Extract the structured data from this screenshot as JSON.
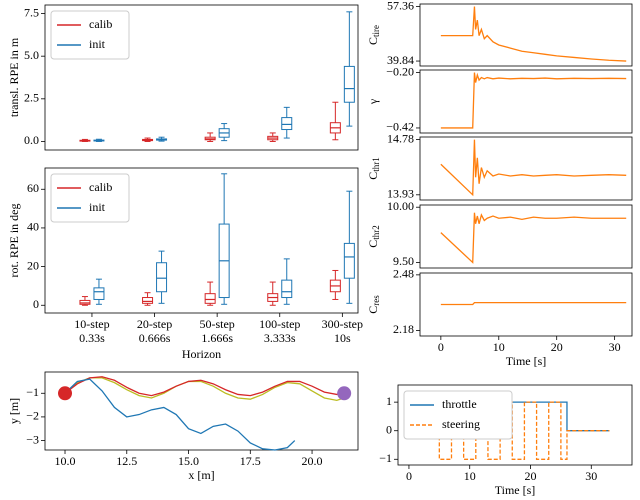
{
  "chart_data": [
    {
      "type": "box",
      "ylabel": "transl. RPE in m",
      "ylim": [
        -0.5,
        8.0
      ],
      "yticks": [
        {
          "value": 0,
          "label": "0.0"
        },
        {
          "value": 2.5,
          "label": "2.5"
        },
        {
          "value": 5,
          "label": "5.0"
        },
        {
          "value": 7.5,
          "label": "7.5"
        }
      ],
      "legend": "upper left",
      "series": [
        {
          "name": "calib",
          "color": "#d62728",
          "min": [
            0.0,
            0.0,
            0.0,
            0.0,
            0.1
          ],
          "q1": [
            0.02,
            0.05,
            0.1,
            0.1,
            0.5
          ],
          "median": [
            0.04,
            0.08,
            0.15,
            0.2,
            0.8
          ],
          "q3": [
            0.07,
            0.12,
            0.25,
            0.3,
            1.1
          ],
          "max": [
            0.12,
            0.2,
            0.5,
            0.5,
            2.3
          ]
        },
        {
          "name": "init",
          "color": "#1f77b4",
          "min": [
            0.0,
            0.02,
            0.05,
            0.2,
            0.9
          ],
          "q1": [
            0.03,
            0.08,
            0.25,
            0.7,
            2.3
          ],
          "median": [
            0.05,
            0.11,
            0.5,
            1.0,
            3.1
          ],
          "q3": [
            0.08,
            0.15,
            0.75,
            1.4,
            4.4
          ],
          "max": [
            0.13,
            0.25,
            1.05,
            2.0,
            7.6
          ]
        }
      ]
    },
    {
      "type": "box",
      "ylabel": "rot. RPE in deg",
      "xlabel": "Horizon",
      "ylim": [
        -4,
        71
      ],
      "yticks": [
        0,
        20,
        40,
        60
      ],
      "legend": "upper left",
      "categories": [
        "10-step",
        "20-step",
        "50-step",
        "100-step",
        "300-step"
      ],
      "category_sublabels": [
        "0.33s",
        "0.666s",
        "1.666s",
        "3.333s",
        "10s"
      ],
      "series": [
        {
          "name": "calib",
          "color": "#d62728",
          "min": [
            0,
            0,
            0,
            0,
            3
          ],
          "q1": [
            0.5,
            1,
            1,
            2,
            7
          ],
          "median": [
            1.2,
            2,
            3,
            4,
            10
          ],
          "q3": [
            2.5,
            4,
            6,
            6,
            13
          ],
          "max": [
            4.5,
            6.5,
            12,
            12,
            18
          ]
        },
        {
          "name": "init",
          "color": "#1f77b4",
          "min": [
            0.5,
            1,
            0.5,
            0.5,
            1
          ],
          "q1": [
            3,
            7,
            4,
            4,
            14
          ],
          "median": [
            7,
            14,
            23,
            7,
            25
          ],
          "q3": [
            9,
            22,
            42,
            13,
            32
          ],
          "max": [
            13.5,
            28,
            68,
            24,
            59
          ]
        }
      ]
    },
    {
      "type": "line",
      "ylabel": "C",
      "ylabel_sub": "tire",
      "xlim": [
        -3.6,
        33
      ],
      "ylim": [
        38.25,
        58.16
      ],
      "yticks": [
        57.36,
        39.84
      ],
      "x": [
        0,
        5.5,
        5.8,
        6.0,
        6.3,
        6.6,
        7.0,
        7.5,
        8,
        9,
        10,
        12,
        14,
        16,
        18,
        20,
        23,
        26,
        29,
        32
      ],
      "series": [
        {
          "color": "#ff7f0e",
          "values": [
            48,
            48,
            57.36,
            50,
            53,
            48,
            50,
            47,
            48,
            46,
            45,
            44,
            43,
            42.5,
            42,
            41.5,
            41,
            40.5,
            40.1,
            39.84
          ]
        }
      ]
    },
    {
      "type": "line",
      "ylabel": "γ",
      "xlim": [
        -3.6,
        33
      ],
      "ylim": [
        -0.44,
        -0.19
      ],
      "yticks": [
        {
          "value": -0.2,
          "label": "−0.20"
        },
        {
          "value": -0.42,
          "label": "−0.42"
        }
      ],
      "x": [
        0,
        5.5,
        5.8,
        6.0,
        6.3,
        6.6,
        7.0,
        7.5,
        8,
        9,
        10,
        12,
        14,
        16,
        18,
        20,
        23,
        26,
        29,
        32
      ],
      "series": [
        {
          "color": "#ff7f0e",
          "values": [
            -0.42,
            -0.42,
            -0.2,
            -0.24,
            -0.21,
            -0.23,
            -0.22,
            -0.225,
            -0.22,
            -0.225,
            -0.222,
            -0.225,
            -0.223,
            -0.224,
            -0.222,
            -0.225,
            -0.223,
            -0.224,
            -0.223,
            -0.224
          ]
        }
      ]
    },
    {
      "type": "line",
      "ylabel": "C",
      "ylabel_sub": "thr1",
      "xlim": [
        -3.6,
        33
      ],
      "ylim": [
        13.85,
        14.82
      ],
      "yticks": [
        14.78,
        13.93
      ],
      "x": [
        0,
        5.5,
        5.8,
        6.0,
        6.3,
        6.6,
        7.0,
        7.5,
        8,
        9,
        10,
        12,
        14,
        16,
        18,
        20,
        23,
        26,
        29,
        32
      ],
      "series": [
        {
          "color": "#ff7f0e",
          "values": [
            14.4,
            13.93,
            14.78,
            14.2,
            14.5,
            14.1,
            14.35,
            14.2,
            14.3,
            14.22,
            14.25,
            14.22,
            14.24,
            14.22,
            14.23,
            14.24,
            14.22,
            14.23,
            14.24,
            14.23
          ]
        }
      ]
    },
    {
      "type": "line",
      "ylabel": "C",
      "ylabel_sub": "thr2",
      "xlim": [
        -3.6,
        33
      ],
      "ylim": [
        9.45,
        10.02
      ],
      "yticks": [
        {
          "value": 10,
          "label": "10.00"
        },
        {
          "value": 9.5,
          "label": "9.50"
        }
      ],
      "x": [
        0,
        5.5,
        5.8,
        6.0,
        6.3,
        6.6,
        7.0,
        7.5,
        8,
        9,
        10,
        12,
        14,
        16,
        18,
        20,
        23,
        26,
        29,
        32
      ],
      "series": [
        {
          "color": "#ff7f0e",
          "values": [
            9.77,
            9.5,
            9.95,
            9.85,
            9.92,
            9.85,
            9.93,
            9.88,
            9.9,
            9.92,
            9.9,
            9.91,
            9.89,
            9.91,
            9.9,
            9.9,
            9.91,
            9.9,
            9.9,
            9.9
          ]
        }
      ]
    },
    {
      "type": "line",
      "ylabel": "C",
      "ylabel_sub": "res",
      "xlabel": "Time [s]",
      "xlim": [
        -3.6,
        33
      ],
      "ylim": [
        2.15,
        2.49
      ],
      "yticks": [
        2.48,
        2.18
      ],
      "xticks": [
        0,
        10,
        20,
        30
      ],
      "x": [
        0,
        5.5,
        5.8,
        6.0,
        6.3,
        6.6,
        7.0,
        7.5,
        8,
        9,
        10,
        12,
        14,
        16,
        18,
        20,
        23,
        26,
        29,
        32
      ],
      "series": [
        {
          "color": "#ff7f0e",
          "values": [
            2.32,
            2.32,
            2.33,
            2.33,
            2.33,
            2.33,
            2.33,
            2.33,
            2.33,
            2.33,
            2.33,
            2.33,
            2.33,
            2.33,
            2.33,
            2.33,
            2.33,
            2.33,
            2.33,
            2.33
          ]
        }
      ]
    },
    {
      "type": "line",
      "xlabel": "x [m]",
      "ylabel": "y [m]",
      "xlim": [
        9.19,
        21.86
      ],
      "ylim": [
        -3.4,
        -0.1
      ],
      "xticks": [
        {
          "value": 10,
          "label": "10.0"
        },
        {
          "value": 12.5,
          "label": "12.5"
        },
        {
          "value": 15,
          "label": "15.0"
        },
        {
          "value": 17.5,
          "label": "17.5"
        },
        {
          "value": 20,
          "label": "20.0"
        }
      ],
      "yticks": [
        {
          "value": -1,
          "label": "−1"
        },
        {
          "value": -2,
          "label": "−2"
        },
        {
          "value": -3,
          "label": "−3"
        }
      ],
      "series": [
        {
          "color": "#bcbd22",
          "x": [
            10.0,
            10.5,
            11.0,
            11.5,
            12.0,
            12.5,
            13.0,
            13.5,
            14.0,
            14.5,
            15.0,
            15.5,
            16.0,
            16.5,
            17.0,
            17.5,
            18.0,
            18.5,
            19.0,
            19.5,
            20.0,
            20.5,
            21.0,
            21.3
          ],
          "values": [
            -1.0,
            -0.55,
            -0.35,
            -0.35,
            -0.55,
            -0.85,
            -1.1,
            -1.2,
            -1.0,
            -0.7,
            -0.5,
            -0.5,
            -0.7,
            -1.0,
            -1.2,
            -1.25,
            -1.05,
            -0.75,
            -0.55,
            -0.6,
            -0.9,
            -1.2,
            -1.3,
            -1.2
          ]
        },
        {
          "color": "#d62728",
          "x": [
            10.0,
            10.5,
            11.0,
            11.5,
            12.0,
            12.5,
            13.0,
            13.5,
            14.0,
            14.5,
            15.0,
            15.5,
            16.0,
            16.5,
            17.0,
            17.5,
            18.0,
            18.5,
            19.0,
            19.5,
            20.0,
            20.5,
            21.0,
            21.3
          ],
          "values": [
            -1.0,
            -0.6,
            -0.35,
            -0.3,
            -0.45,
            -0.75,
            -1.0,
            -1.1,
            -0.95,
            -0.7,
            -0.5,
            -0.45,
            -0.6,
            -0.85,
            -1.05,
            -1.1,
            -0.95,
            -0.7,
            -0.5,
            -0.5,
            -0.7,
            -0.95,
            -1.05,
            -1.0
          ]
        },
        {
          "color": "#1f77b4",
          "x": [
            10.0,
            10.5,
            11.0,
            11.5,
            12.0,
            12.5,
            13.0,
            13.5,
            14.0,
            14.5,
            15.0,
            15.5,
            16.0,
            16.5,
            17.0,
            17.5,
            18.0,
            18.5,
            19.0,
            19.3
          ],
          "values": [
            -1.0,
            -0.5,
            -0.4,
            -0.9,
            -1.6,
            -2.0,
            -1.9,
            -1.7,
            -1.6,
            -1.9,
            -2.5,
            -2.7,
            -2.4,
            -2.3,
            -2.6,
            -3.1,
            -3.35,
            -3.4,
            -3.3,
            -3.0
          ]
        }
      ],
      "markers": [
        {
          "x": 10.0,
          "y": -1.0,
          "color": "#d62728"
        },
        {
          "x": 21.3,
          "y": -1.0,
          "color": "#9467bd"
        }
      ]
    },
    {
      "type": "line",
      "xlabel": "Time [s]",
      "xlim": [
        -1.8,
        36.7
      ],
      "ylim": [
        -1.2,
        1.6
      ],
      "legend": "upper left",
      "xticks": [
        0,
        10,
        20,
        30
      ],
      "yticks": [
        1,
        0,
        {
          "value": -1,
          "label": "−1"
        }
      ],
      "series": [
        {
          "name": "throttle",
          "color": "#1f77b4",
          "linestyle": "solid",
          "x": [
            0,
            4,
            4,
            26,
            26,
            33
          ],
          "values": [
            0,
            0,
            1,
            1,
            0,
            0
          ]
        },
        {
          "name": "steering",
          "color": "#ff7f0e",
          "linestyle": "dashed",
          "x": [
            0,
            5,
            5,
            7,
            7,
            9,
            9,
            11,
            11,
            13,
            13,
            15,
            15,
            17,
            17,
            19,
            19,
            21,
            21,
            23,
            23,
            25,
            25,
            26,
            26,
            33
          ],
          "values": [
            0,
            0,
            -1,
            -1,
            1,
            1,
            -1,
            -1,
            1,
            1,
            -1,
            -1,
            1,
            1,
            -1,
            -1,
            1,
            1,
            -1,
            -1,
            1,
            1,
            -1,
            -1,
            0,
            0
          ]
        }
      ]
    }
  ]
}
